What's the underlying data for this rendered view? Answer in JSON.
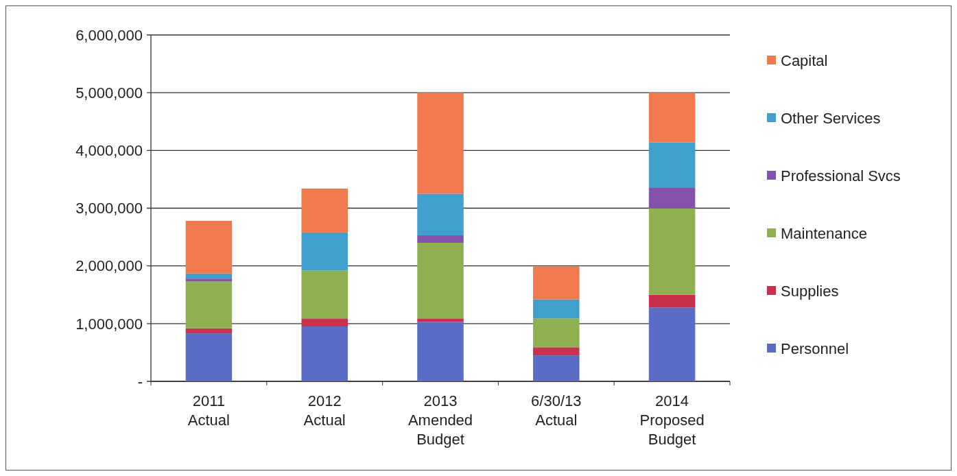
{
  "chart_data": {
    "type": "bar",
    "stacked": true,
    "categories": [
      "2011\nActual",
      "2012\nActual",
      "2013\nAmended\nBudget",
      "6/30/13\nActual",
      "2014\nProposed\nBudget"
    ],
    "series": [
      {
        "name": "Personnel",
        "color": "#5a6cc6",
        "values": [
          830000,
          950000,
          1030000,
          450000,
          1280000
        ]
      },
      {
        "name": "Supplies",
        "color": "#c9304c",
        "values": [
          90000,
          140000,
          60000,
          140000,
          220000
        ]
      },
      {
        "name": "Maintenance",
        "color": "#8eb050",
        "values": [
          810000,
          830000,
          1310000,
          500000,
          1500000
        ]
      },
      {
        "name": "Professional Svcs",
        "color": "#8452aa",
        "values": [
          50000,
          0,
          130000,
          0,
          360000
        ]
      },
      {
        "name": "Other Services",
        "color": "#409fcc",
        "values": [
          90000,
          660000,
          720000,
          330000,
          780000
        ]
      },
      {
        "name": "Capital",
        "color": "#f07a4e",
        "values": [
          910000,
          760000,
          1750000,
          570000,
          860000
        ]
      }
    ],
    "ylim": [
      0,
      6000000
    ],
    "yticks": [
      {
        "value": 0,
        "label": "-"
      },
      {
        "value": 1000000,
        "label": "1,000,000"
      },
      {
        "value": 2000000,
        "label": "2,000,000"
      },
      {
        "value": 3000000,
        "label": "3,000,000"
      },
      {
        "value": 4000000,
        "label": "4,000,000"
      },
      {
        "value": 5000000,
        "label": "5,000,000"
      },
      {
        "value": 6000000,
        "label": "6,000,000"
      }
    ],
    "grid": "y",
    "legend": "right"
  }
}
